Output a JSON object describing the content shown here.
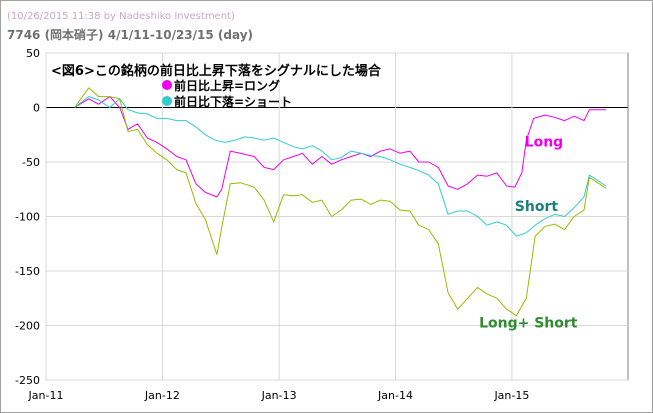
{
  "header": {
    "watermark": "(10/26/2015 11:38 by Nadeshiko Investment)",
    "subtitle": "7746 (岡本硝子) 4/1/11-10/23/15 (day)"
  },
  "colors": {
    "long": "#ee00ee",
    "short": "#33cccc",
    "combined": "#99bb00",
    "long_label": "#ee00ee",
    "short_label": "#1a7f7f",
    "combined_label": "#2e8b2e",
    "grid": "#d8d8d8",
    "zero_line": "#000000"
  },
  "chart_data": {
    "type": "line",
    "title": "<図6>この銘柄の前日比上昇下落をシグナルにした場合",
    "legend": [
      "前日比上昇=ロング",
      "前日比下落=ショート"
    ],
    "legend_position": "top-left",
    "grid": true,
    "xlim": [
      "2011-01-01",
      "2015-12-31"
    ],
    "ylim": [
      -250,
      50
    ],
    "x_ticks": [
      {
        "date": "2011-01-01",
        "label": "Jan-11"
      },
      {
        "date": "2012-01-01",
        "label": "Jan-12"
      },
      {
        "date": "2013-01-01",
        "label": "Jan-13"
      },
      {
        "date": "2014-01-01",
        "label": "Jan-14"
      },
      {
        "date": "2015-01-01",
        "label": "Jan-15"
      }
    ],
    "y_ticks": [
      50,
      0,
      -50,
      -100,
      -150,
      -200,
      -250
    ],
    "series": [
      {
        "name": "Long",
        "color": "#ee00ee",
        "points": [
          [
            "2011-04-01",
            0
          ],
          [
            "2011-05-15",
            8
          ],
          [
            "2011-06-15",
            3
          ],
          [
            "2011-07-20",
            10
          ],
          [
            "2011-08-20",
            0
          ],
          [
            "2011-09-15",
            -20
          ],
          [
            "2011-10-15",
            -15
          ],
          [
            "2011-11-15",
            -28
          ],
          [
            "2011-12-15",
            -32
          ],
          [
            "2012-01-15",
            -38
          ],
          [
            "2012-02-15",
            -45
          ],
          [
            "2012-03-15",
            -48
          ],
          [
            "2012-04-15",
            -70
          ],
          [
            "2012-05-15",
            -78
          ],
          [
            "2012-06-20",
            -82
          ],
          [
            "2012-07-05",
            -75
          ],
          [
            "2012-08-01",
            -40
          ],
          [
            "2012-09-01",
            -42
          ],
          [
            "2012-10-15",
            -45
          ],
          [
            "2012-11-15",
            -55
          ],
          [
            "2012-12-15",
            -57
          ],
          [
            "2013-01-15",
            -48
          ],
          [
            "2013-02-15",
            -45
          ],
          [
            "2013-03-15",
            -42
          ],
          [
            "2013-04-15",
            -52
          ],
          [
            "2013-05-15",
            -45
          ],
          [
            "2013-06-15",
            -52
          ],
          [
            "2013-07-15",
            -48
          ],
          [
            "2013-08-15",
            -45
          ],
          [
            "2013-09-15",
            -42
          ],
          [
            "2013-10-15",
            -45
          ],
          [
            "2013-11-15",
            -40
          ],
          [
            "2013-12-15",
            -38
          ],
          [
            "2014-01-15",
            -42
          ],
          [
            "2014-02-15",
            -40
          ],
          [
            "2014-03-15",
            -50
          ],
          [
            "2014-04-15",
            -50
          ],
          [
            "2014-05-15",
            -55
          ],
          [
            "2014-06-15",
            -72
          ],
          [
            "2014-07-15",
            -75
          ],
          [
            "2014-08-15",
            -70
          ],
          [
            "2014-09-15",
            -62
          ],
          [
            "2014-10-15",
            -63
          ],
          [
            "2014-11-15",
            -60
          ],
          [
            "2014-12-15",
            -72
          ],
          [
            "2015-01-10",
            -73
          ],
          [
            "2015-02-01",
            -60
          ],
          [
            "2015-02-15",
            -30
          ],
          [
            "2015-03-10",
            -10
          ],
          [
            "2015-04-15",
            -7
          ],
          [
            "2015-05-15",
            -9
          ],
          [
            "2015-06-15",
            -12
          ],
          [
            "2015-07-15",
            -8
          ],
          [
            "2015-08-15",
            -12
          ],
          [
            "2015-09-01",
            -2
          ],
          [
            "2015-10-23",
            -2
          ]
        ]
      },
      {
        "name": "Short",
        "color": "#33cccc",
        "points": [
          [
            "2011-04-01",
            0
          ],
          [
            "2011-05-15",
            10
          ],
          [
            "2011-06-15",
            7
          ],
          [
            "2011-07-20",
            0
          ],
          [
            "2011-08-20",
            8
          ],
          [
            "2011-09-15",
            -2
          ],
          [
            "2011-10-15",
            -5
          ],
          [
            "2011-11-15",
            -6
          ],
          [
            "2011-12-15",
            -10
          ],
          [
            "2012-01-15",
            -10
          ],
          [
            "2012-02-15",
            -12
          ],
          [
            "2012-03-15",
            -12
          ],
          [
            "2012-04-15",
            -18
          ],
          [
            "2012-05-15",
            -25
          ],
          [
            "2012-06-15",
            -30
          ],
          [
            "2012-07-15",
            -32
          ],
          [
            "2012-08-15",
            -30
          ],
          [
            "2012-09-15",
            -27
          ],
          [
            "2012-10-15",
            -28
          ],
          [
            "2012-11-15",
            -30
          ],
          [
            "2012-12-15",
            -28
          ],
          [
            "2013-01-15",
            -32
          ],
          [
            "2013-02-15",
            -36
          ],
          [
            "2013-03-15",
            -38
          ],
          [
            "2013-04-15",
            -35
          ],
          [
            "2013-05-15",
            -40
          ],
          [
            "2013-06-15",
            -48
          ],
          [
            "2013-07-15",
            -46
          ],
          [
            "2013-08-15",
            -40
          ],
          [
            "2013-09-15",
            -42
          ],
          [
            "2013-10-15",
            -44
          ],
          [
            "2013-11-15",
            -45
          ],
          [
            "2013-12-15",
            -48
          ],
          [
            "2014-01-15",
            -52
          ],
          [
            "2014-02-15",
            -55
          ],
          [
            "2014-03-15",
            -58
          ],
          [
            "2014-04-15",
            -62
          ],
          [
            "2014-05-15",
            -70
          ],
          [
            "2014-06-15",
            -98
          ],
          [
            "2014-07-15",
            -95
          ],
          [
            "2014-08-15",
            -95
          ],
          [
            "2014-09-15",
            -100
          ],
          [
            "2014-10-15",
            -108
          ],
          [
            "2014-11-15",
            -105
          ],
          [
            "2014-12-15",
            -108
          ],
          [
            "2015-01-15",
            -118
          ],
          [
            "2015-02-15",
            -115
          ],
          [
            "2015-03-15",
            -108
          ],
          [
            "2015-04-15",
            -102
          ],
          [
            "2015-05-15",
            -98
          ],
          [
            "2015-06-15",
            -100
          ],
          [
            "2015-07-15",
            -92
          ],
          [
            "2015-08-15",
            -82
          ],
          [
            "2015-09-01",
            -62
          ],
          [
            "2015-10-23",
            -72
          ]
        ]
      },
      {
        "name": "Long+ Short",
        "color": "#99bb00",
        "points": [
          [
            "2011-04-01",
            0
          ],
          [
            "2011-05-15",
            18
          ],
          [
            "2011-06-15",
            10
          ],
          [
            "2011-07-20",
            10
          ],
          [
            "2011-08-20",
            8
          ],
          [
            "2011-09-15",
            -22
          ],
          [
            "2011-10-15",
            -20
          ],
          [
            "2011-11-15",
            -34
          ],
          [
            "2011-12-15",
            -42
          ],
          [
            "2012-01-15",
            -48
          ],
          [
            "2012-02-15",
            -57
          ],
          [
            "2012-03-15",
            -60
          ],
          [
            "2012-04-15",
            -88
          ],
          [
            "2012-05-15",
            -103
          ],
          [
            "2012-06-20",
            -135
          ],
          [
            "2012-07-05",
            -110
          ],
          [
            "2012-08-01",
            -70
          ],
          [
            "2012-09-01",
            -69
          ],
          [
            "2012-10-15",
            -73
          ],
          [
            "2012-11-15",
            -85
          ],
          [
            "2012-12-15",
            -105
          ],
          [
            "2013-01-15",
            -80
          ],
          [
            "2013-02-15",
            -81
          ],
          [
            "2013-03-15",
            -80
          ],
          [
            "2013-04-15",
            -87
          ],
          [
            "2013-05-15",
            -85
          ],
          [
            "2013-06-15",
            -100
          ],
          [
            "2013-07-15",
            -94
          ],
          [
            "2013-08-15",
            -85
          ],
          [
            "2013-09-15",
            -84
          ],
          [
            "2013-10-15",
            -89
          ],
          [
            "2013-11-15",
            -85
          ],
          [
            "2013-12-15",
            -86
          ],
          [
            "2014-01-15",
            -94
          ],
          [
            "2014-02-15",
            -95
          ],
          [
            "2014-03-15",
            -108
          ],
          [
            "2014-04-15",
            -112
          ],
          [
            "2014-05-15",
            -125
          ],
          [
            "2014-06-15",
            -170
          ],
          [
            "2014-07-15",
            -185
          ],
          [
            "2014-08-15",
            -175
          ],
          [
            "2014-09-15",
            -165
          ],
          [
            "2014-10-15",
            -171
          ],
          [
            "2014-11-15",
            -175
          ],
          [
            "2014-12-15",
            -185
          ],
          [
            "2015-01-15",
            -191
          ],
          [
            "2015-02-15",
            -175
          ],
          [
            "2015-03-15",
            -118
          ],
          [
            "2015-04-15",
            -109
          ],
          [
            "2015-05-15",
            -107
          ],
          [
            "2015-06-15",
            -112
          ],
          [
            "2015-07-15",
            -100
          ],
          [
            "2015-08-15",
            -94
          ],
          [
            "2015-09-01",
            -64
          ],
          [
            "2015-10-23",
            -74
          ]
        ]
      }
    ],
    "annotations": [
      {
        "text": "Long",
        "series": "Long",
        "x": "2015-02-10",
        "y": -36
      },
      {
        "text": "Short",
        "series": "Short",
        "x": "2015-01-10",
        "y": -95
      },
      {
        "text": "Long+ Short",
        "series": "Long+ Short",
        "x": "2014-09-20",
        "y": -202
      }
    ]
  }
}
